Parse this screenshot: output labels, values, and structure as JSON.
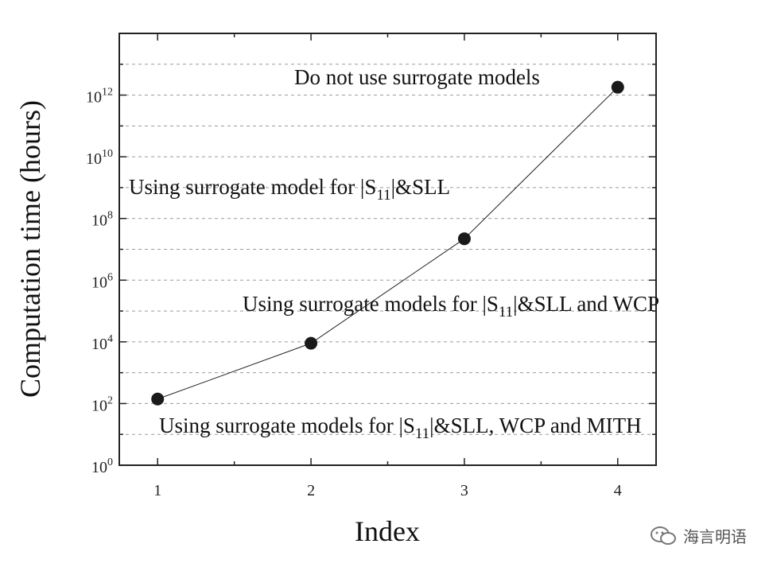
{
  "chart_data": {
    "type": "line",
    "xlabel": "Index",
    "ylabel": "Computation time (hours)",
    "yscale": "log10",
    "xlim": [
      0.75,
      4.25
    ],
    "ylim": [
      1,
      100000000000000.0
    ],
    "x_ticks": [
      1,
      2,
      3,
      4
    ],
    "y_tick_exponents": [
      0,
      2,
      4,
      6,
      8,
      10,
      12
    ],
    "grid": "horizontal dashed",
    "series": [
      {
        "x": [
          1,
          2,
          3,
          4
        ],
        "y": [
          140,
          9000,
          22000000.0,
          1800000000000.0
        ]
      }
    ],
    "annotations": [
      {
        "pre": "Do not use surrogate models",
        "sub": "",
        "post": ""
      },
      {
        "pre": "Using surrogate model for |S",
        "sub": "11",
        "post": "|&SLL"
      },
      {
        "pre": "Using surrogate models for |S",
        "sub": "11",
        "post": "|&SLL and WCP"
      },
      {
        "pre": "Using surrogate models for |S",
        "sub": "11",
        "post": "|&SLL, WCP and MITH"
      }
    ]
  },
  "watermark": {
    "text": "海言明语"
  }
}
